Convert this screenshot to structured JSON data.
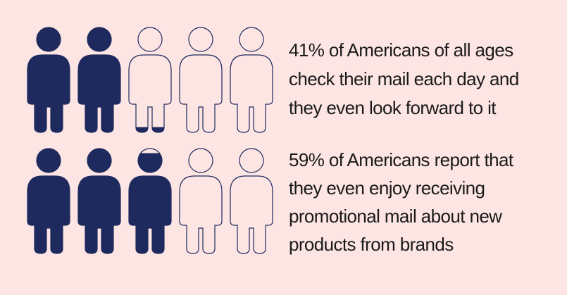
{
  "chart_data": [
    {
      "type": "pictogram",
      "value": 41,
      "color": "#1e2a5e",
      "text_lines": [
        "41% of Americans of all ages",
        "check their mail each day and",
        "they even look forward to it"
      ]
    },
    {
      "type": "pictogram",
      "value": 59,
      "color": "#1e2a5e",
      "text_lines": [
        "59% of Americans report that",
        "they even enjoy receiving",
        "promotional mail about new",
        "products from brands"
      ]
    }
  ]
}
